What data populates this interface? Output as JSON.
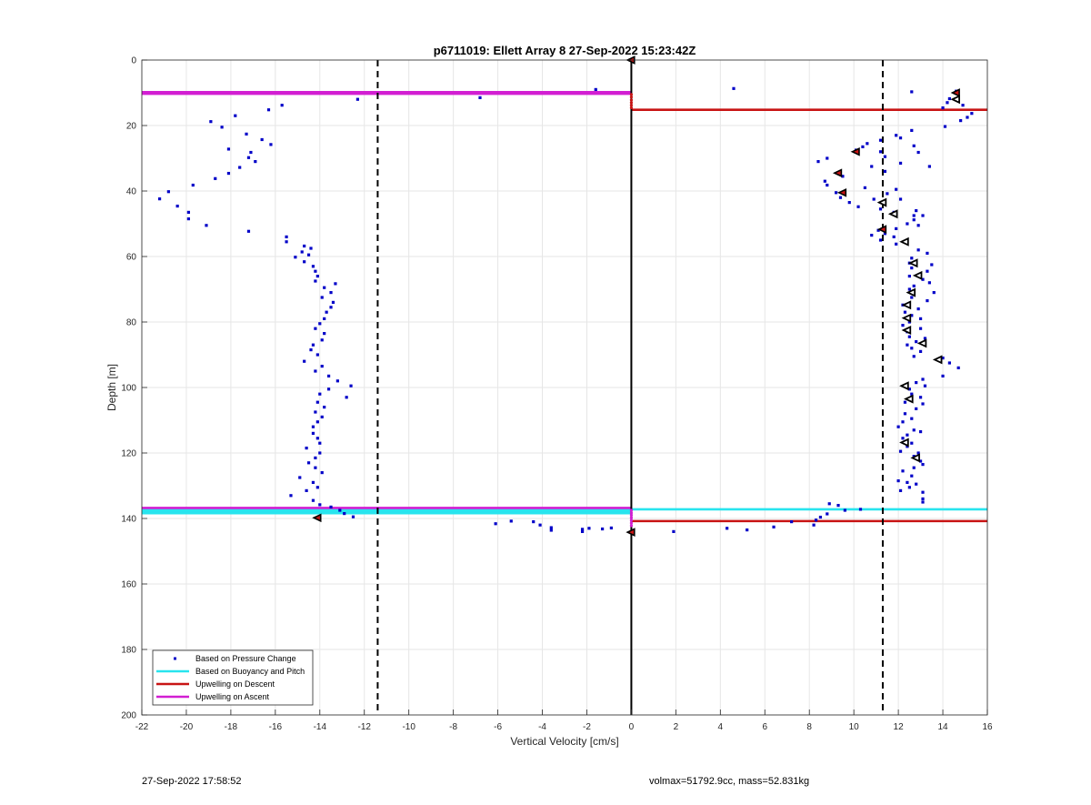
{
  "chart_data": {
    "type": "scatter",
    "title": "p6711019: Ellett Array 8 27-Sep-2022 15:23:42Z",
    "xlabel": "Vertical Velocity [cm/s]",
    "ylabel": "Depth [m]",
    "xlim": [
      -22,
      16
    ],
    "ylim": [
      0,
      200
    ],
    "y_reversed": true,
    "xticks": [
      -22,
      -20,
      -18,
      -16,
      -14,
      -12,
      -10,
      -8,
      -6,
      -4,
      -2,
      0,
      2,
      4,
      6,
      8,
      10,
      12,
      14,
      16
    ],
    "yticks": [
      0,
      20,
      40,
      60,
      80,
      100,
      120,
      140,
      160,
      180,
      200
    ],
    "grid": true,
    "legend_position": "bottom-left",
    "colors": {
      "pressure": "#0000c8",
      "buoyancy": "#28e4ee",
      "descent": "#c81414",
      "ascent": "#d21ed2",
      "reference": "#000000"
    },
    "series": [
      {
        "name": "Based on Pressure Change",
        "style": "dots",
        "points": [
          [
            -12.3,
            12
          ],
          [
            -6.8,
            11.5
          ],
          [
            -1.6,
            9
          ],
          [
            -15.7,
            13.8
          ],
          [
            -16.3,
            15.2
          ],
          [
            -17.8,
            17
          ],
          [
            -18.9,
            18.8
          ],
          [
            -18.4,
            20.5
          ],
          [
            -17.3,
            22.6
          ],
          [
            -16.6,
            24.3
          ],
          [
            -16.2,
            25.8
          ],
          [
            -18.1,
            27.2
          ],
          [
            -17.1,
            28.2
          ],
          [
            -17.2,
            29.8
          ],
          [
            -16.9,
            31
          ],
          [
            -17.6,
            32.8
          ],
          [
            -18.1,
            34.6
          ],
          [
            -18.7,
            36.2
          ],
          [
            -19.7,
            38.2
          ],
          [
            -20.8,
            40.2
          ],
          [
            -21.2,
            42.4
          ],
          [
            -20.4,
            44.6
          ],
          [
            -19.9,
            46.5
          ],
          [
            -19.9,
            48.5
          ],
          [
            -19.1,
            50.5
          ],
          [
            -17.2,
            52.3
          ],
          [
            -15.5,
            54
          ],
          [
            -15.5,
            55.5
          ],
          [
            -14.7,
            56.8
          ],
          [
            -14.4,
            57.5
          ],
          [
            -14.8,
            58.6
          ],
          [
            -14.5,
            59.5
          ],
          [
            -15.1,
            60.2
          ],
          [
            -14.7,
            61.6
          ],
          [
            -14.3,
            63
          ],
          [
            -14.2,
            64.5
          ],
          [
            -14.1,
            66
          ],
          [
            -14.2,
            67.5
          ],
          [
            -13.3,
            68.3
          ],
          [
            -13.8,
            69.5
          ],
          [
            -13.5,
            71
          ],
          [
            -13.9,
            72.5
          ],
          [
            -13.4,
            74
          ],
          [
            -13.5,
            75.5
          ],
          [
            -13.7,
            77
          ],
          [
            -13.8,
            79
          ],
          [
            -14,
            80.5
          ],
          [
            -14.2,
            82
          ],
          [
            -13.8,
            83.5
          ],
          [
            -13.9,
            85.5
          ],
          [
            -14.3,
            87
          ],
          [
            -14.4,
            88.5
          ],
          [
            -14.1,
            90
          ],
          [
            -14.7,
            92
          ],
          [
            -13.9,
            93.5
          ],
          [
            -14.2,
            95
          ],
          [
            -13.6,
            96.5
          ],
          [
            -13.2,
            98
          ],
          [
            -12.6,
            99.5
          ],
          [
            -13.6,
            100.5
          ],
          [
            -14,
            102
          ],
          [
            -12.8,
            103
          ],
          [
            -14.1,
            104.5
          ],
          [
            -13.8,
            106
          ],
          [
            -14.2,
            107.5
          ],
          [
            -13.9,
            109
          ],
          [
            -14.1,
            110.5
          ],
          [
            -14.3,
            112
          ],
          [
            -14.3,
            114
          ],
          [
            -14.1,
            115.5
          ],
          [
            -14,
            117
          ],
          [
            -14.6,
            118.5
          ],
          [
            -14,
            120
          ],
          [
            -14.2,
            121.5
          ],
          [
            -14.5,
            123
          ],
          [
            -14.2,
            124.5
          ],
          [
            -13.9,
            126
          ],
          [
            -14.9,
            127.5
          ],
          [
            -14.3,
            129
          ],
          [
            -14.1,
            130.5
          ],
          [
            -14.6,
            131.5
          ],
          [
            -15.3,
            133
          ],
          [
            -14.3,
            134.5
          ],
          [
            -14,
            135.8
          ],
          [
            -13.5,
            136.5
          ],
          [
            -13.1,
            137.5
          ],
          [
            -12.9,
            138.5
          ],
          [
            -12.5,
            139.5
          ],
          [
            -5.4,
            140.8
          ],
          [
            -6.1,
            141.6
          ],
          [
            -4.4,
            141
          ],
          [
            -4.1,
            142
          ],
          [
            -3.6,
            142.8
          ],
          [
            -3.6,
            143.6
          ],
          [
            -2.2,
            143.3
          ],
          [
            -2.2,
            144
          ],
          [
            -1.9,
            143
          ],
          [
            -1.3,
            143.2
          ],
          [
            -0.9,
            142.9
          ],
          [
            1.9,
            144
          ],
          [
            4.3,
            143
          ],
          [
            5.2,
            143.5
          ],
          [
            6.4,
            142.6
          ],
          [
            7.2,
            141
          ],
          [
            8.2,
            142
          ],
          [
            8.3,
            140.5
          ],
          [
            8.5,
            139.6
          ],
          [
            8.8,
            138.6
          ],
          [
            9.3,
            136
          ],
          [
            9.6,
            137.5
          ],
          [
            8.9,
            135.5
          ],
          [
            10.3,
            137.2
          ],
          [
            4.6,
            8.7
          ],
          [
            12.6,
            9.7
          ],
          [
            14.6,
            9.5
          ],
          [
            14.3,
            11.8
          ],
          [
            14.2,
            13
          ],
          [
            14.9,
            13.8
          ],
          [
            14,
            14.6
          ],
          [
            15.3,
            16.3
          ],
          [
            15.1,
            17.5
          ],
          [
            14.8,
            18.5
          ],
          [
            14.1,
            20.3
          ],
          [
            12.6,
            21.5
          ],
          [
            11.9,
            23
          ],
          [
            12.1,
            23.8
          ],
          [
            11.2,
            24.5
          ],
          [
            10.6,
            25.5
          ],
          [
            12.7,
            26.2
          ],
          [
            10.1,
            27.5
          ],
          [
            10.4,
            26.5
          ],
          [
            11.2,
            28
          ],
          [
            12.9,
            28.2
          ],
          [
            11.4,
            29.5
          ],
          [
            8.8,
            30
          ],
          [
            8.4,
            31
          ],
          [
            12.1,
            31.5
          ],
          [
            10.8,
            32.5
          ],
          [
            13.4,
            32.5
          ],
          [
            11.4,
            34
          ],
          [
            9.5,
            35.5
          ],
          [
            8.7,
            37
          ],
          [
            8.8,
            38.2
          ],
          [
            10.5,
            39
          ],
          [
            11.9,
            39.5
          ],
          [
            9.2,
            40.5
          ],
          [
            11.5,
            40.8
          ],
          [
            9.4,
            42
          ],
          [
            10.9,
            42.5
          ],
          [
            12.1,
            42.5
          ],
          [
            9.8,
            43.5
          ],
          [
            10.2,
            44.8
          ],
          [
            11.2,
            45.5
          ],
          [
            12.8,
            46
          ],
          [
            11.8,
            46.5
          ],
          [
            12.7,
            47.5
          ],
          [
            13.1,
            47.5
          ],
          [
            12.7,
            48.8
          ],
          [
            12.4,
            50
          ],
          [
            12.9,
            50.5
          ],
          [
            11.9,
            51.5
          ],
          [
            11.1,
            52
          ],
          [
            11.4,
            53
          ],
          [
            10.8,
            53.5
          ],
          [
            11.8,
            54
          ],
          [
            11.2,
            55
          ],
          [
            12.3,
            55.5
          ],
          [
            11.9,
            56.2
          ],
          [
            12.9,
            58
          ],
          [
            13.3,
            59
          ],
          [
            12.6,
            60.5
          ],
          [
            12.5,
            62
          ],
          [
            13.5,
            62.5
          ],
          [
            12.6,
            63.5
          ],
          [
            13.3,
            64.5
          ],
          [
            12.5,
            66
          ],
          [
            13.1,
            67
          ],
          [
            13.4,
            68
          ],
          [
            12.7,
            69
          ],
          [
            12.5,
            70
          ],
          [
            13.6,
            71
          ],
          [
            12.6,
            72.5
          ],
          [
            13.3,
            73.5
          ],
          [
            12.2,
            74.8
          ],
          [
            12.9,
            76
          ],
          [
            12.3,
            77
          ],
          [
            12.6,
            78
          ],
          [
            13,
            79
          ],
          [
            12.5,
            80
          ],
          [
            12.2,
            81
          ],
          [
            13,
            82
          ],
          [
            12.4,
            83
          ],
          [
            12.5,
            84.5
          ],
          [
            13.2,
            85
          ],
          [
            12.8,
            86
          ],
          [
            12.4,
            87
          ],
          [
            12.6,
            88
          ],
          [
            13,
            89
          ],
          [
            12.7,
            90.5
          ],
          [
            14,
            91
          ],
          [
            14.3,
            92.5
          ],
          [
            14.7,
            94
          ],
          [
            14,
            96.5
          ],
          [
            13.1,
            97.5
          ],
          [
            12.8,
            98.5
          ],
          [
            13.2,
            99.5
          ],
          [
            12.5,
            100.5
          ],
          [
            12.6,
            102
          ],
          [
            13,
            103
          ],
          [
            12.3,
            104.5
          ],
          [
            13.1,
            105
          ],
          [
            12.8,
            106.5
          ],
          [
            12.3,
            108
          ],
          [
            12.6,
            109.5
          ],
          [
            12.2,
            110.5
          ],
          [
            12,
            112
          ],
          [
            12.7,
            113
          ],
          [
            13,
            113.5
          ],
          [
            12.4,
            114.5
          ],
          [
            12.2,
            115.5
          ],
          [
            12.6,
            117
          ],
          [
            12.4,
            118
          ],
          [
            12.1,
            119.5
          ],
          [
            12.9,
            120
          ],
          [
            12.7,
            121
          ],
          [
            13,
            122.5
          ],
          [
            13.1,
            123.5
          ],
          [
            12.7,
            124.5
          ],
          [
            12.2,
            125.5
          ],
          [
            12.6,
            127
          ],
          [
            12,
            128.5
          ],
          [
            12.4,
            129
          ],
          [
            12.8,
            129.5
          ],
          [
            12.5,
            130.5
          ],
          [
            12.1,
            131.5
          ],
          [
            13.1,
            132
          ],
          [
            13.1,
            134
          ],
          [
            13.1,
            135
          ]
        ]
      },
      {
        "name": "Based on Buoyancy and Pitch",
        "style": "line",
        "lines": [
          {
            "x": [
              -22,
              0
            ],
            "y": [
              137.4,
              137.4
            ]
          },
          {
            "x": [
              -22,
              0
            ],
            "y": [
              137.9,
              137.9
            ]
          },
          {
            "x": [
              -22,
              0
            ],
            "y": [
              138.4,
              138.4
            ]
          },
          {
            "x": [
              0,
              16
            ],
            "y": [
              137.2,
              137.2
            ]
          }
        ]
      },
      {
        "name": "Upwelling on Descent",
        "style": "line",
        "lines": [
          {
            "x": [
              0,
              16
            ],
            "y": [
              15.2,
              15.2
            ]
          },
          {
            "x": [
              0,
              16
            ],
            "y": [
              140.8,
              140.8
            ]
          }
        ]
      },
      {
        "name": "Upwelling on Ascent",
        "style": "line",
        "lines": [
          {
            "x": [
              -22,
              0
            ],
            "y": [
              9.8,
              9.8
            ]
          },
          {
            "x": [
              -22,
              0
            ],
            "y": [
              10.3,
              10.3
            ]
          },
          {
            "x": [
              -22,
              0
            ],
            "y": [
              136.8,
              136.8
            ]
          }
        ]
      }
    ],
    "vertical_lines": {
      "solid_x": 0,
      "dashed_x": [
        -11.4,
        11.3
      ]
    },
    "zero_axis_markers": [
      10.5,
      11.3,
      12.2,
      13,
      13.8,
      14.6,
      137.5,
      138.3,
      139,
      139.8,
      140.6,
      141.4,
      142.2
    ],
    "red_triangle_markers": [
      [
        0,
        0
      ],
      [
        14.6,
        10
      ],
      [
        10.1,
        28
      ],
      [
        9.3,
        34.5
      ],
      [
        9.5,
        40.5
      ],
      [
        11.3,
        51.7
      ],
      [
        -14.1,
        139.8
      ],
      [
        0,
        144.2
      ]
    ],
    "open_triangle_markers": [
      [
        14.6,
        12
      ],
      [
        11.3,
        43.5
      ],
      [
        11.8,
        47
      ],
      [
        12.3,
        55.5
      ],
      [
        12.7,
        62
      ],
      [
        12.9,
        65.8
      ],
      [
        12.6,
        71
      ],
      [
        12.4,
        74.8
      ],
      [
        12.4,
        78.8
      ],
      [
        12.4,
        82.5
      ],
      [
        13.1,
        86.5
      ],
      [
        13.8,
        91.5
      ],
      [
        12.3,
        99.5
      ],
      [
        12.5,
        103.5
      ],
      [
        12.3,
        116.8
      ],
      [
        12.8,
        121.5
      ]
    ]
  },
  "footer": {
    "left": "27-Sep-2022 17:58:52",
    "right": "volmax=51792.9cc, mass=52.831kg"
  }
}
